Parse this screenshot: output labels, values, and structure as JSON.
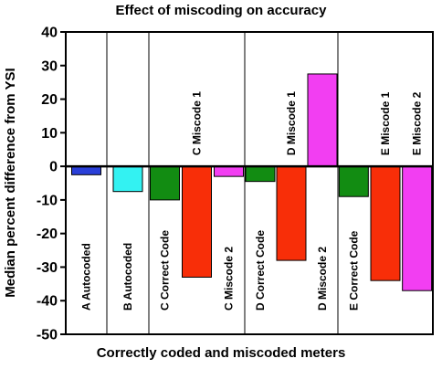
{
  "chart_data": {
    "type": "bar",
    "title": "Effect of miscoding on accuracy",
    "xlabel": "Correctly coded and miscoded meters",
    "ylabel": "Median percent difference from YSI",
    "ylim": [
      -50,
      40
    ],
    "yticks": [
      40,
      30,
      20,
      10,
      0,
      -10,
      -20,
      -30,
      -40,
      -50
    ],
    "grid": false,
    "groups": [
      {
        "name": "A",
        "bars": [
          {
            "label": "A  Autocoded",
            "value": -2.5,
            "color": "#2a3fd8"
          }
        ]
      },
      {
        "name": "B",
        "bars": [
          {
            "label": "B  Autocoded",
            "value": -7.5,
            "color": "#33f2f2"
          }
        ]
      },
      {
        "name": "C",
        "bars": [
          {
            "label": "C  Correct Code",
            "value": -10,
            "color": "#128c12"
          },
          {
            "label": "C  Miscode 1",
            "value": -33,
            "color": "#f82e08"
          },
          {
            "label": "C  Miscode 2",
            "value": -3,
            "color": "#f23ef2"
          }
        ]
      },
      {
        "name": "D",
        "bars": [
          {
            "label": "D  Correct Code",
            "value": -4.5,
            "color": "#128c12"
          },
          {
            "label": "D  Miscode 1",
            "value": -28,
            "color": "#f82e08"
          },
          {
            "label": "D  Miscode 2",
            "value": 27.5,
            "color": "#f23ef2"
          }
        ]
      },
      {
        "name": "E",
        "bars": [
          {
            "label": "E  Correct Code",
            "value": -9,
            "color": "#128c12"
          },
          {
            "label": "E  Miscode 1",
            "value": -34,
            "color": "#f82e08"
          },
          {
            "label": "E  Miscode 2",
            "value": -37,
            "color": "#f23ef2"
          }
        ]
      }
    ]
  }
}
